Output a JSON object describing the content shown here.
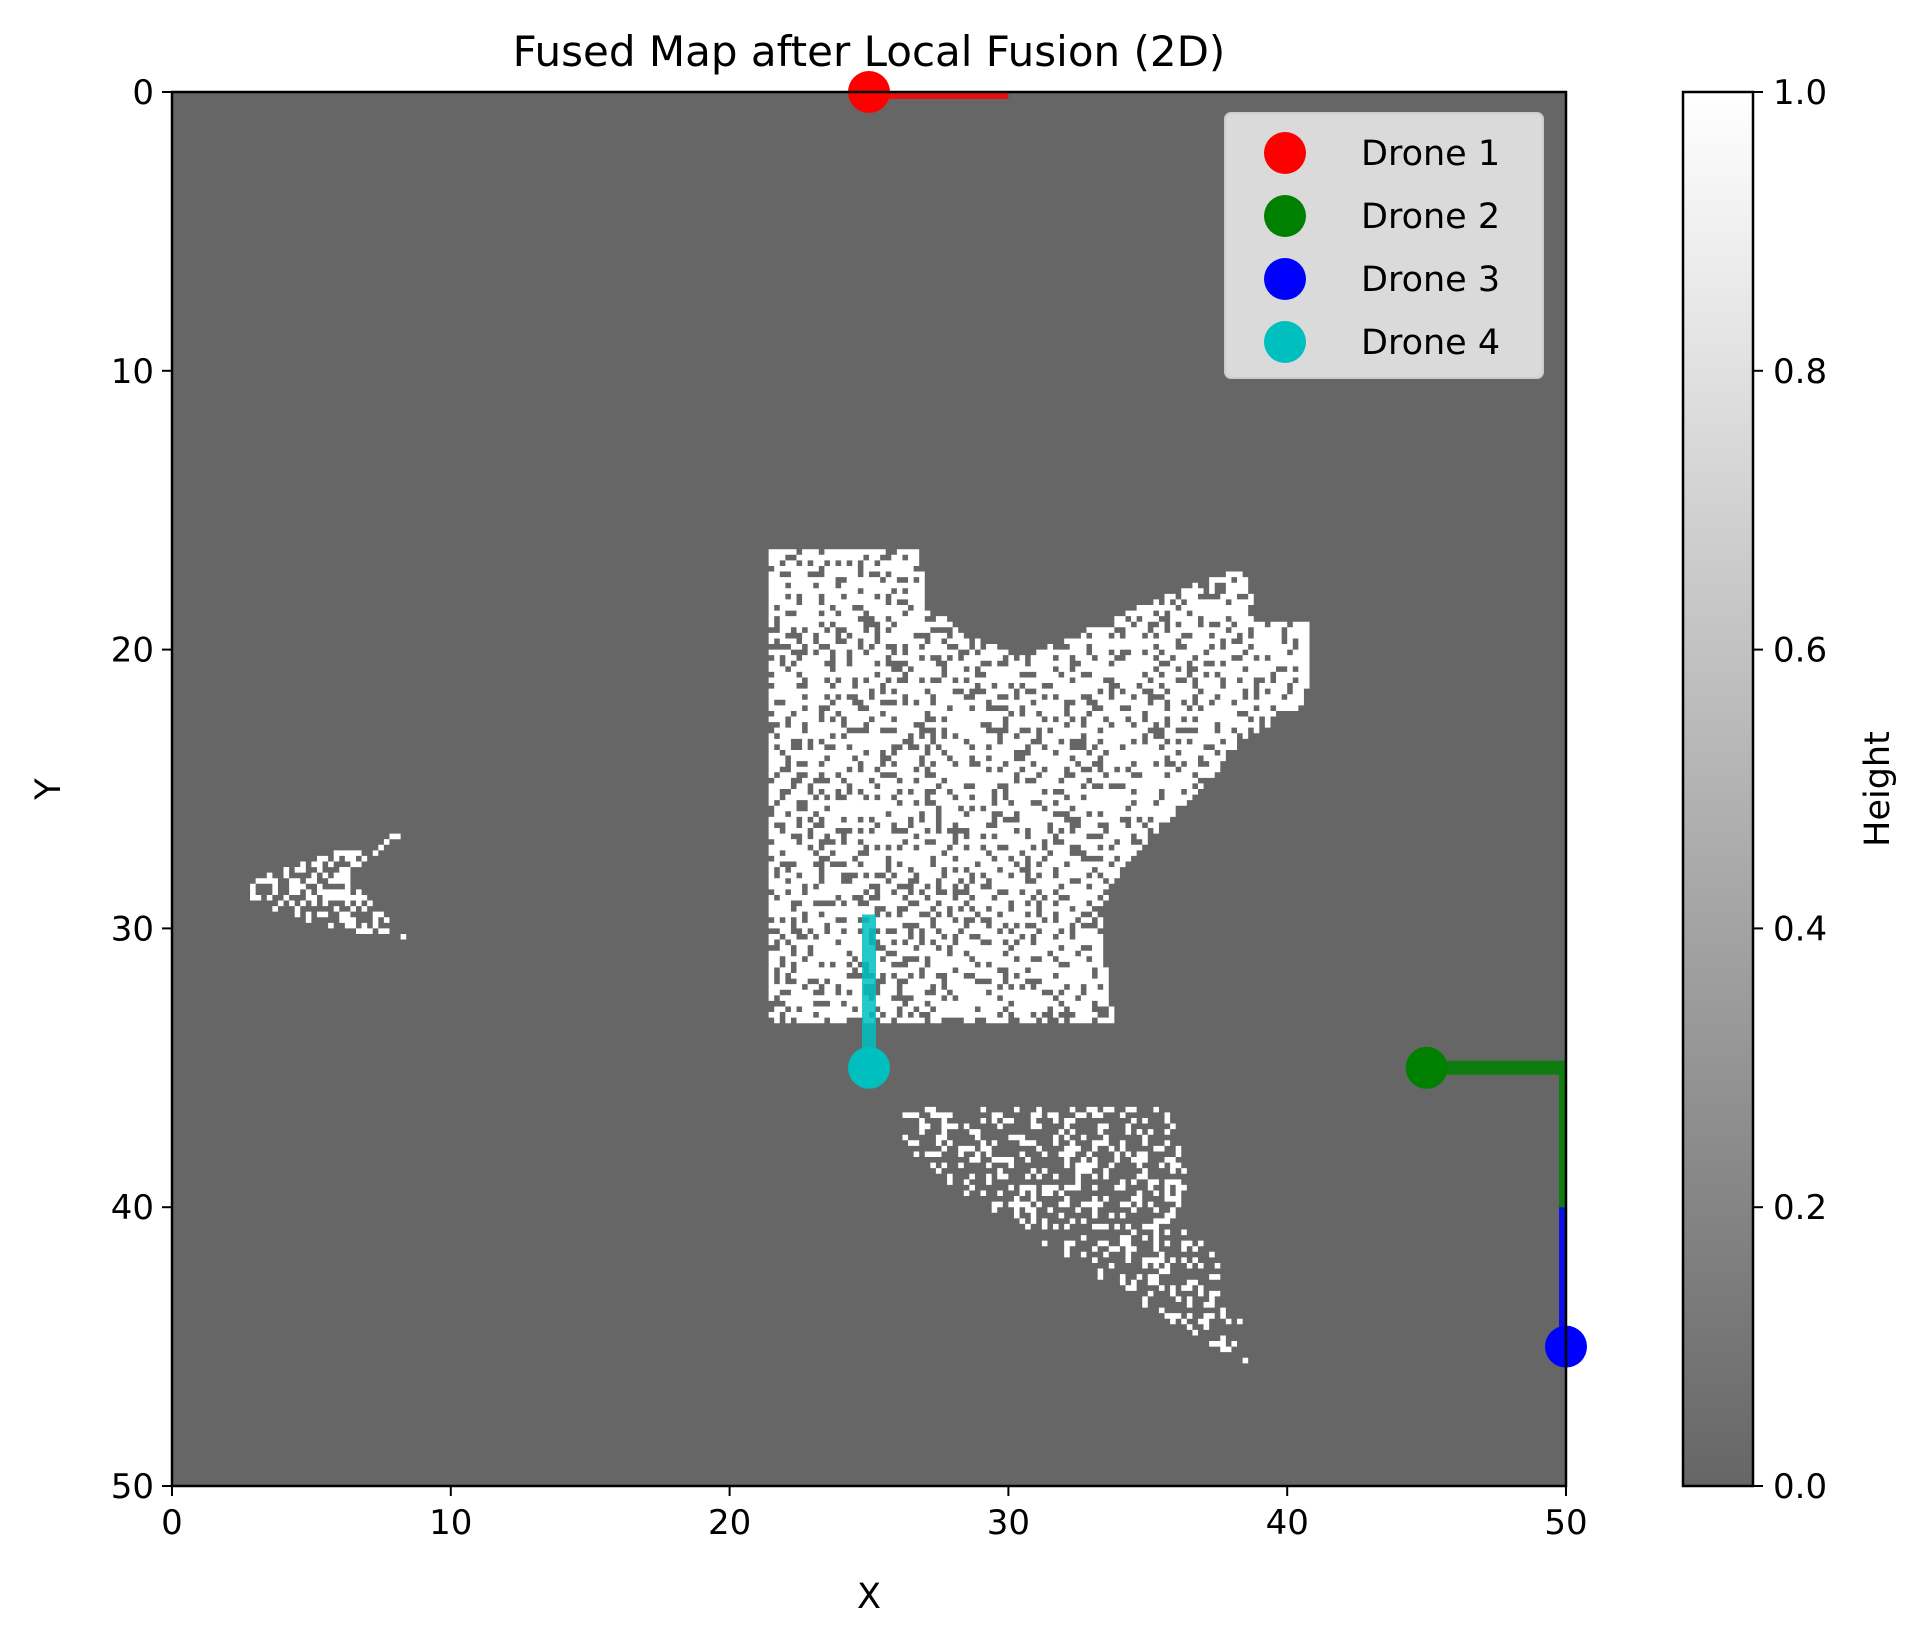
{
  "chart_data": {
    "type": "heatmap",
    "title": "Fused Map after Local Fusion (2D)",
    "xlabel": "X",
    "ylabel": "Y",
    "xlim": [
      0,
      50
    ],
    "ylim": [
      50,
      0
    ],
    "y_inverted": true,
    "x_ticks": [
      0,
      10,
      20,
      30,
      40,
      50
    ],
    "y_ticks": [
      0,
      10,
      20,
      30,
      40,
      50
    ],
    "grid": false,
    "background_value": 0.0,
    "colormap": "gray",
    "colorbar": {
      "label": "Height",
      "range": [
        0.0,
        1.0
      ],
      "ticks": [
        "0.0",
        "0.2",
        "0.4",
        "0.6",
        "0.8",
        "1.0"
      ],
      "low_color": "#666666",
      "high_color": "#ffffff"
    },
    "obstacle_regions": [
      {
        "name": "central block",
        "value": 1.0,
        "outline": [
          [
            21.5,
            16.5
          ],
          [
            26.8,
            16.5
          ],
          [
            27.2,
            18.5
          ],
          [
            28.5,
            19.5
          ],
          [
            30.5,
            20.3
          ],
          [
            33,
            19.2
          ],
          [
            35,
            18.3
          ],
          [
            38.6,
            17
          ],
          [
            38.8,
            19.1
          ],
          [
            40.8,
            19.1
          ],
          [
            40.8,
            21.8
          ],
          [
            38.5,
            23.2
          ],
          [
            37,
            25
          ],
          [
            35,
            26.8
          ],
          [
            34,
            28
          ],
          [
            33.3,
            29.5
          ],
          [
            33.8,
            33.5
          ],
          [
            21.5,
            33.5
          ]
        ],
        "density": 0.75
      },
      {
        "name": "left wedge",
        "value": 1.0,
        "outline": [
          [
            2.8,
            28.3
          ],
          [
            5.5,
            27.4
          ],
          [
            8.4,
            26.5
          ],
          [
            6.3,
            28.2
          ],
          [
            8.6,
            30.5
          ],
          [
            5.5,
            29.9
          ],
          [
            2.8,
            29.2
          ]
        ],
        "density": 0.45
      },
      {
        "name": "lower triangle",
        "value": 1.0,
        "outline": [
          [
            26.2,
            36.5
          ],
          [
            35.9,
            36.5
          ],
          [
            36.6,
            40
          ],
          [
            38.2,
            43.5
          ],
          [
            38.6,
            45.7
          ],
          [
            34,
            43
          ],
          [
            30,
            40.5
          ],
          [
            26.2,
            38
          ]
        ],
        "density": 0.3
      }
    ],
    "series": [
      {
        "name": "Drone 1",
        "color": "#ff0000",
        "path_x": [
          25,
          30
        ],
        "path_y": [
          0,
          0
        ],
        "marker": [
          25,
          0
        ]
      },
      {
        "name": "Drone 2",
        "color": "#008000",
        "path_x": [
          45,
          50,
          50
        ],
        "path_y": [
          35,
          35,
          40
        ],
        "marker": [
          45,
          35
        ]
      },
      {
        "name": "Drone 3",
        "color": "#0000ff",
        "path_x": [
          50,
          50
        ],
        "path_y": [
          45,
          40
        ],
        "marker": [
          50,
          45
        ]
      },
      {
        "name": "Drone 4",
        "color": "#00bfbf",
        "path_x": [
          25,
          25
        ],
        "path_y": [
          35,
          29.5
        ],
        "marker": [
          25,
          35
        ]
      }
    ],
    "legend_position": "top-right"
  }
}
